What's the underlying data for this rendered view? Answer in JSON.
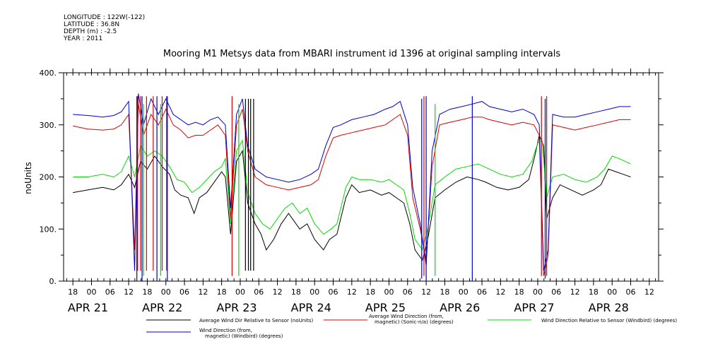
{
  "meta": {
    "longitude": "LONGITUDE : 122W(-122)",
    "latitude": "LATITUDE : 36.8N",
    "depth": "DEPTH (m) : -2.5",
    "year": "YEAR : 2011"
  },
  "chart_data": {
    "type": "line",
    "title": "Mooring M1 Metsys data from MBARI instrument id 1396 at original sampling intervals",
    "ylabel": "noUnits",
    "xlabel": "",
    "ylim": [
      0,
      400
    ],
    "yticks": [
      "0.",
      "100.",
      "200.",
      "300.",
      "400."
    ],
    "xlim": [
      -0.375,
      7.625
    ],
    "hour_ticks": [
      "18",
      "00",
      "06",
      "12",
      "18",
      "00",
      "06",
      "12",
      "18",
      "00",
      "06",
      "12",
      "18",
      "00",
      "06",
      "12",
      "18",
      "00",
      "06",
      "12",
      "18",
      "00",
      "06",
      "12",
      "18",
      "00",
      "06",
      "12",
      "18",
      "00",
      "06",
      "12"
    ],
    "date_labels": [
      "APR 21",
      "APR 22",
      "APR 23",
      "APR 24",
      "APR 25",
      "APR 26",
      "APR 27",
      "APR 28"
    ],
    "grid": false,
    "legend_position": "bottom",
    "series": [
      {
        "name": "Average Wind Dir Relative to Sensor (noUnits)",
        "color": "#000000",
        "points": [
          [
            -0.25,
            170
          ],
          [
            -0.05,
            175
          ],
          [
            0.15,
            180
          ],
          [
            0.3,
            175
          ],
          [
            0.4,
            185
          ],
          [
            0.5,
            205
          ],
          [
            0.58,
            180
          ],
          [
            0.66,
            230
          ],
          [
            0.75,
            215
          ],
          [
            0.85,
            240
          ],
          [
            0.95,
            220
          ],
          [
            1.05,
            205
          ],
          [
            1.12,
            175
          ],
          [
            1.2,
            165
          ],
          [
            1.3,
            160
          ],
          [
            1.38,
            130
          ],
          [
            1.45,
            160
          ],
          [
            1.55,
            170
          ],
          [
            1.65,
            190
          ],
          [
            1.75,
            210
          ],
          [
            1.8,
            200
          ],
          [
            1.87,
            90
          ],
          [
            1.95,
            230
          ],
          [
            2.03,
            250
          ],
          [
            2.1,
            150
          ],
          [
            2.2,
            110
          ],
          [
            2.28,
            90
          ],
          [
            2.35,
            60
          ],
          [
            2.45,
            80
          ],
          [
            2.55,
            110
          ],
          [
            2.65,
            130
          ],
          [
            2.8,
            100
          ],
          [
            2.9,
            110
          ],
          [
            3.0,
            80
          ],
          [
            3.12,
            60
          ],
          [
            3.2,
            80
          ],
          [
            3.3,
            90
          ],
          [
            3.42,
            160
          ],
          [
            3.5,
            185
          ],
          [
            3.6,
            170
          ],
          [
            3.75,
            175
          ],
          [
            3.9,
            165
          ],
          [
            4.0,
            170
          ],
          [
            4.1,
            160
          ],
          [
            4.2,
            150
          ],
          [
            4.28,
            110
          ],
          [
            4.35,
            60
          ],
          [
            4.45,
            40
          ],
          [
            4.52,
            80
          ],
          [
            4.62,
            160
          ],
          [
            4.75,
            175
          ],
          [
            4.9,
            190
          ],
          [
            5.05,
            200
          ],
          [
            5.2,
            195
          ],
          [
            5.3,
            190
          ],
          [
            5.45,
            180
          ],
          [
            5.6,
            175
          ],
          [
            5.75,
            180
          ],
          [
            5.88,
            195
          ],
          [
            5.96,
            240
          ],
          [
            6.02,
            280
          ],
          [
            6.08,
            260
          ],
          [
            6.12,
            120
          ],
          [
            6.2,
            160
          ],
          [
            6.3,
            185
          ],
          [
            6.45,
            175
          ],
          [
            6.6,
            165
          ],
          [
            6.75,
            175
          ],
          [
            6.85,
            185
          ],
          [
            6.95,
            215
          ],
          [
            7.05,
            210
          ],
          [
            7.15,
            205
          ],
          [
            7.25,
            200
          ]
        ]
      },
      {
        "name": "Average Wind Direction (from, magnetic) (Sonic-n/a) (degrees)",
        "color": "#dd0000",
        "points": [
          [
            -0.25,
            298
          ],
          [
            -0.05,
            292
          ],
          [
            0.15,
            290
          ],
          [
            0.3,
            292
          ],
          [
            0.4,
            300
          ],
          [
            0.5,
            320
          ],
          [
            0.58,
            60
          ],
          [
            0.63,
            340
          ],
          [
            0.7,
            280
          ],
          [
            0.8,
            320
          ],
          [
            0.9,
            300
          ],
          [
            1.0,
            330
          ],
          [
            1.1,
            300
          ],
          [
            1.2,
            290
          ],
          [
            1.3,
            275
          ],
          [
            1.4,
            280
          ],
          [
            1.5,
            280
          ],
          [
            1.6,
            290
          ],
          [
            1.7,
            300
          ],
          [
            1.8,
            280
          ],
          [
            1.87,
            120
          ],
          [
            1.95,
            300
          ],
          [
            2.03,
            330
          ],
          [
            2.1,
            250
          ],
          [
            2.2,
            200
          ],
          [
            2.35,
            185
          ],
          [
            2.5,
            180
          ],
          [
            2.65,
            175
          ],
          [
            2.8,
            180
          ],
          [
            2.95,
            185
          ],
          [
            3.05,
            195
          ],
          [
            3.15,
            240
          ],
          [
            3.25,
            275
          ],
          [
            3.35,
            280
          ],
          [
            3.5,
            285
          ],
          [
            3.65,
            290
          ],
          [
            3.8,
            295
          ],
          [
            3.95,
            300
          ],
          [
            4.05,
            310
          ],
          [
            4.15,
            320
          ],
          [
            4.25,
            280
          ],
          [
            4.32,
            160
          ],
          [
            4.42,
            100
          ],
          [
            4.5,
            40
          ],
          [
            4.58,
            220
          ],
          [
            4.68,
            300
          ],
          [
            4.82,
            305
          ],
          [
            4.98,
            310
          ],
          [
            5.12,
            315
          ],
          [
            5.25,
            315
          ],
          [
            5.35,
            310
          ],
          [
            5.5,
            305
          ],
          [
            5.65,
            300
          ],
          [
            5.8,
            305
          ],
          [
            5.95,
            300
          ],
          [
            6.02,
            280
          ],
          [
            6.08,
            10
          ],
          [
            6.14,
            50
          ],
          [
            6.2,
            300
          ],
          [
            6.35,
            295
          ],
          [
            6.5,
            290
          ],
          [
            6.65,
            295
          ],
          [
            6.8,
            300
          ],
          [
            6.95,
            305
          ],
          [
            7.1,
            310
          ],
          [
            7.25,
            310
          ]
        ]
      },
      {
        "name": "Wind Direction Relative to Sensor (Windbird) (degrees)",
        "color": "#00dd00",
        "points": [
          [
            -0.25,
            200
          ],
          [
            -0.05,
            200
          ],
          [
            0.15,
            205
          ],
          [
            0.3,
            200
          ],
          [
            0.4,
            210
          ],
          [
            0.5,
            240
          ],
          [
            0.58,
            200
          ],
          [
            0.66,
            260
          ],
          [
            0.75,
            240
          ],
          [
            0.85,
            250
          ],
          [
            0.95,
            240
          ],
          [
            1.05,
            220
          ],
          [
            1.15,
            195
          ],
          [
            1.25,
            190
          ],
          [
            1.35,
            170
          ],
          [
            1.45,
            180
          ],
          [
            1.55,
            195
          ],
          [
            1.65,
            210
          ],
          [
            1.75,
            220
          ],
          [
            1.8,
            235
          ],
          [
            1.87,
            110
          ],
          [
            1.95,
            250
          ],
          [
            2.03,
            270
          ],
          [
            2.1,
            170
          ],
          [
            2.2,
            130
          ],
          [
            2.3,
            110
          ],
          [
            2.4,
            100
          ],
          [
            2.5,
            120
          ],
          [
            2.6,
            140
          ],
          [
            2.7,
            150
          ],
          [
            2.8,
            130
          ],
          [
            2.9,
            140
          ],
          [
            3.0,
            110
          ],
          [
            3.12,
            90
          ],
          [
            3.22,
            100
          ],
          [
            3.3,
            110
          ],
          [
            3.42,
            180
          ],
          [
            3.5,
            200
          ],
          [
            3.6,
            195
          ],
          [
            3.75,
            195
          ],
          [
            3.9,
            190
          ],
          [
            4.0,
            195
          ],
          [
            4.1,
            185
          ],
          [
            4.2,
            175
          ],
          [
            4.28,
            130
          ],
          [
            4.35,
            80
          ],
          [
            4.45,
            60
          ],
          [
            4.52,
            100
          ],
          [
            4.62,
            185
          ],
          [
            4.75,
            200
          ],
          [
            4.9,
            215
          ],
          [
            5.05,
            220
          ],
          [
            5.2,
            225
          ],
          [
            5.35,
            215
          ],
          [
            5.5,
            205
          ],
          [
            5.65,
            200
          ],
          [
            5.8,
            205
          ],
          [
            5.92,
            230
          ],
          [
            6.0,
            265
          ],
          [
            6.06,
            270
          ],
          [
            6.12,
            160
          ],
          [
            6.2,
            200
          ],
          [
            6.35,
            205
          ],
          [
            6.5,
            195
          ],
          [
            6.65,
            190
          ],
          [
            6.8,
            200
          ],
          [
            6.9,
            215
          ],
          [
            7.0,
            240
          ],
          [
            7.1,
            235
          ],
          [
            7.25,
            225
          ]
        ]
      },
      {
        "name": "Wind Direction (from, magnetic) (Windbird) (degrees)",
        "color": "#0000cc",
        "points": [
          [
            -0.25,
            320
          ],
          [
            -0.05,
            318
          ],
          [
            0.15,
            315
          ],
          [
            0.3,
            318
          ],
          [
            0.4,
            325
          ],
          [
            0.5,
            345
          ],
          [
            0.58,
            20
          ],
          [
            0.63,
            360
          ],
          [
            0.7,
            300
          ],
          [
            0.8,
            350
          ],
          [
            0.9,
            320
          ],
          [
            1.0,
            350
          ],
          [
            1.1,
            320
          ],
          [
            1.2,
            310
          ],
          [
            1.3,
            300
          ],
          [
            1.4,
            305
          ],
          [
            1.5,
            300
          ],
          [
            1.6,
            310
          ],
          [
            1.7,
            315
          ],
          [
            1.8,
            300
          ],
          [
            1.87,
            140
          ],
          [
            1.95,
            320
          ],
          [
            2.03,
            350
          ],
          [
            2.1,
            260
          ],
          [
            2.2,
            215
          ],
          [
            2.35,
            200
          ],
          [
            2.5,
            195
          ],
          [
            2.65,
            190
          ],
          [
            2.8,
            195
          ],
          [
            2.95,
            205
          ],
          [
            3.05,
            215
          ],
          [
            3.15,
            260
          ],
          [
            3.25,
            295
          ],
          [
            3.35,
            300
          ],
          [
            3.5,
            310
          ],
          [
            3.65,
            315
          ],
          [
            3.8,
            320
          ],
          [
            3.95,
            330
          ],
          [
            4.05,
            335
          ],
          [
            4.15,
            345
          ],
          [
            4.25,
            300
          ],
          [
            4.32,
            180
          ],
          [
            4.42,
            110
          ],
          [
            4.5,
            30
          ],
          [
            4.58,
            250
          ],
          [
            4.68,
            320
          ],
          [
            4.82,
            330
          ],
          [
            4.98,
            335
          ],
          [
            5.12,
            340
          ],
          [
            5.25,
            345
          ],
          [
            5.35,
            335
          ],
          [
            5.5,
            330
          ],
          [
            5.65,
            325
          ],
          [
            5.8,
            330
          ],
          [
            5.95,
            320
          ],
          [
            6.02,
            300
          ],
          [
            6.08,
            20
          ],
          [
            6.14,
            60
          ],
          [
            6.2,
            320
          ],
          [
            6.35,
            315
          ],
          [
            6.5,
            315
          ],
          [
            6.65,
            320
          ],
          [
            6.8,
            325
          ],
          [
            6.95,
            330
          ],
          [
            7.1,
            335
          ],
          [
            7.25,
            335
          ]
        ]
      }
    ],
    "spikes": [
      {
        "color": "#000000",
        "x": [
          2.07,
          2.11,
          2.14,
          2.18
        ],
        "from": 20,
        "to": 350
      },
      {
        "color": "#dd0000",
        "x": [
          0.62,
          0.66,
          0.74,
          0.83,
          0.95,
          1.01
        ],
        "from": 20,
        "to": 355
      },
      {
        "color": "#0000cc",
        "x": [
          0.61,
          0.68,
          0.88,
          1.02,
          4.5,
          5.12
        ],
        "from": 0,
        "to": 355
      },
      {
        "color": "#00dd00",
        "x": [
          0.7,
          0.93,
          1.98,
          4.62
        ],
        "from": 10,
        "to": 340
      },
      {
        "color": "#dd0000",
        "x": [
          1.89,
          4.47,
          6.05,
          6.12
        ],
        "from": 10,
        "to": 355
      },
      {
        "color": "#0000cc",
        "x": [
          4.44,
          6.1
        ],
        "from": 5,
        "to": 350
      }
    ]
  }
}
